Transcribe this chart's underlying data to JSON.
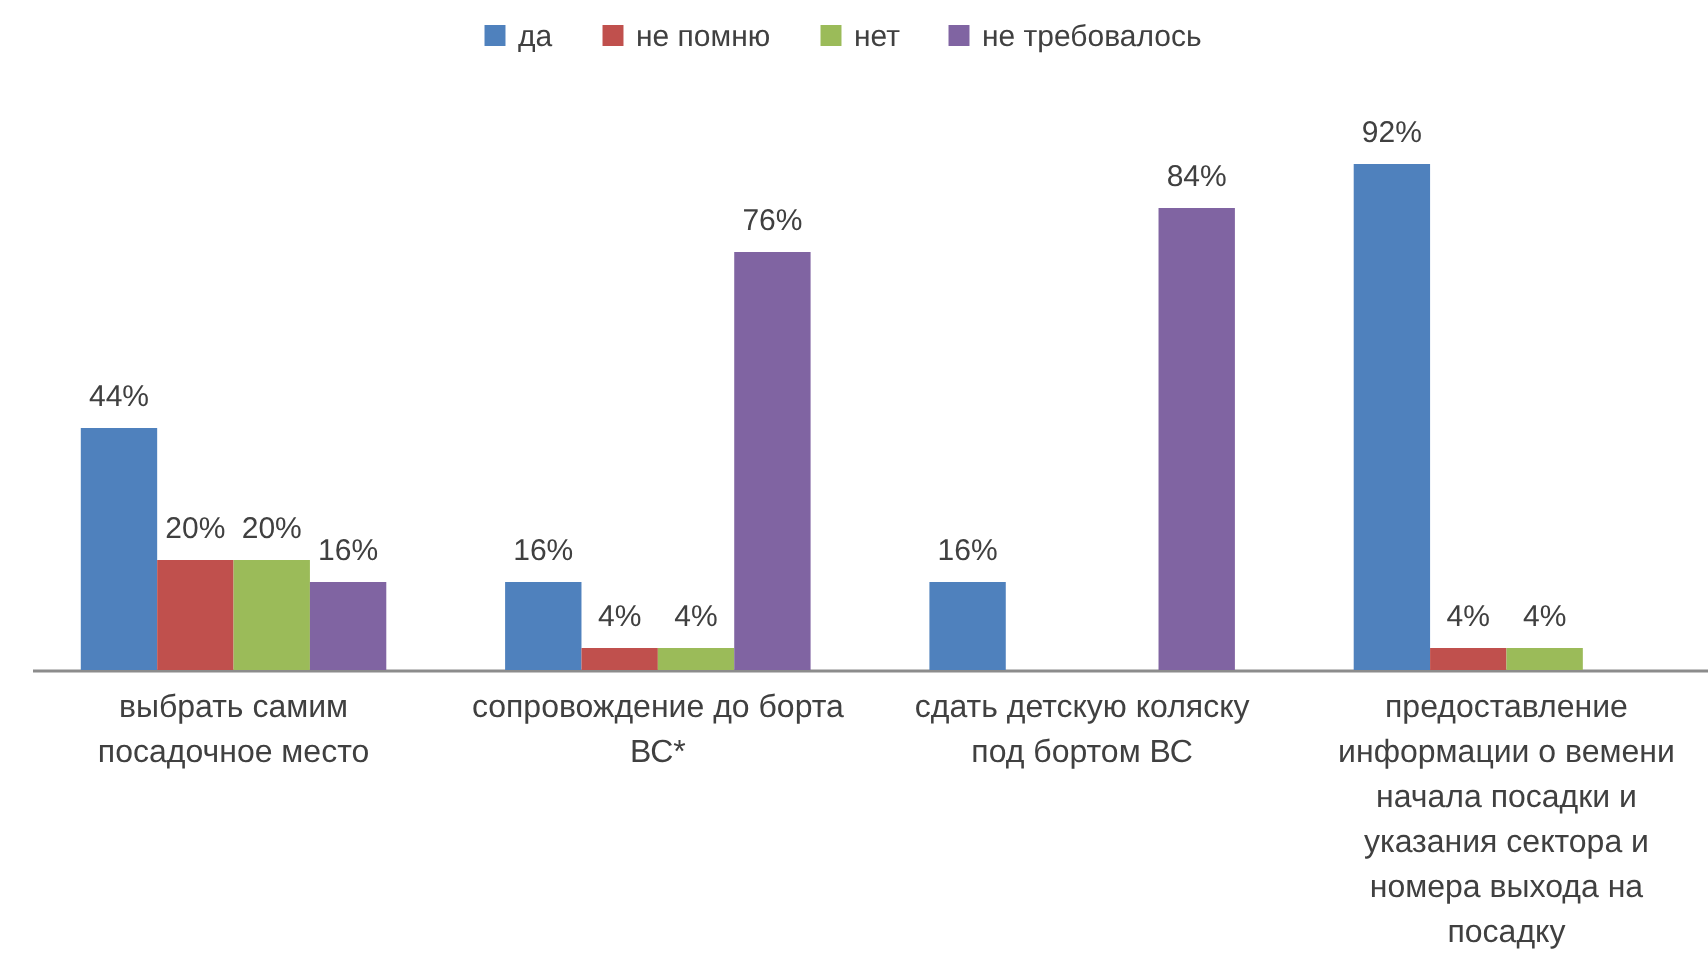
{
  "chart_data": {
    "type": "bar",
    "categories": [
      "выбрать самим посадочное место",
      "сопровождение до борта ВС*",
      "сдать детскую коляску под бортом ВС",
      "предоставление информации о вемени начала посадки и указания сектора и номера выхода на посадку"
    ],
    "series": [
      {
        "name": "да",
        "color": "#4f81bd",
        "values": [
          44,
          16,
          16,
          92
        ],
        "value_labels": [
          "44%",
          "16%",
          "16%",
          "92%"
        ]
      },
      {
        "name": "не помню",
        "color": "#c0504d",
        "values": [
          20,
          4,
          null,
          4
        ],
        "value_labels": [
          "20%",
          "4%",
          null,
          "4%"
        ]
      },
      {
        "name": "нет",
        "color": "#9bbb59",
        "values": [
          20,
          4,
          null,
          4
        ],
        "value_labels": [
          "20%",
          "4%",
          null,
          "4%"
        ]
      },
      {
        "name": "не требовалось",
        "color": "#8064a2",
        "values": [
          16,
          76,
          84,
          null
        ],
        "value_labels": [
          "16%",
          "76%",
          "84%",
          null
        ]
      }
    ],
    "legend": "top"
  }
}
